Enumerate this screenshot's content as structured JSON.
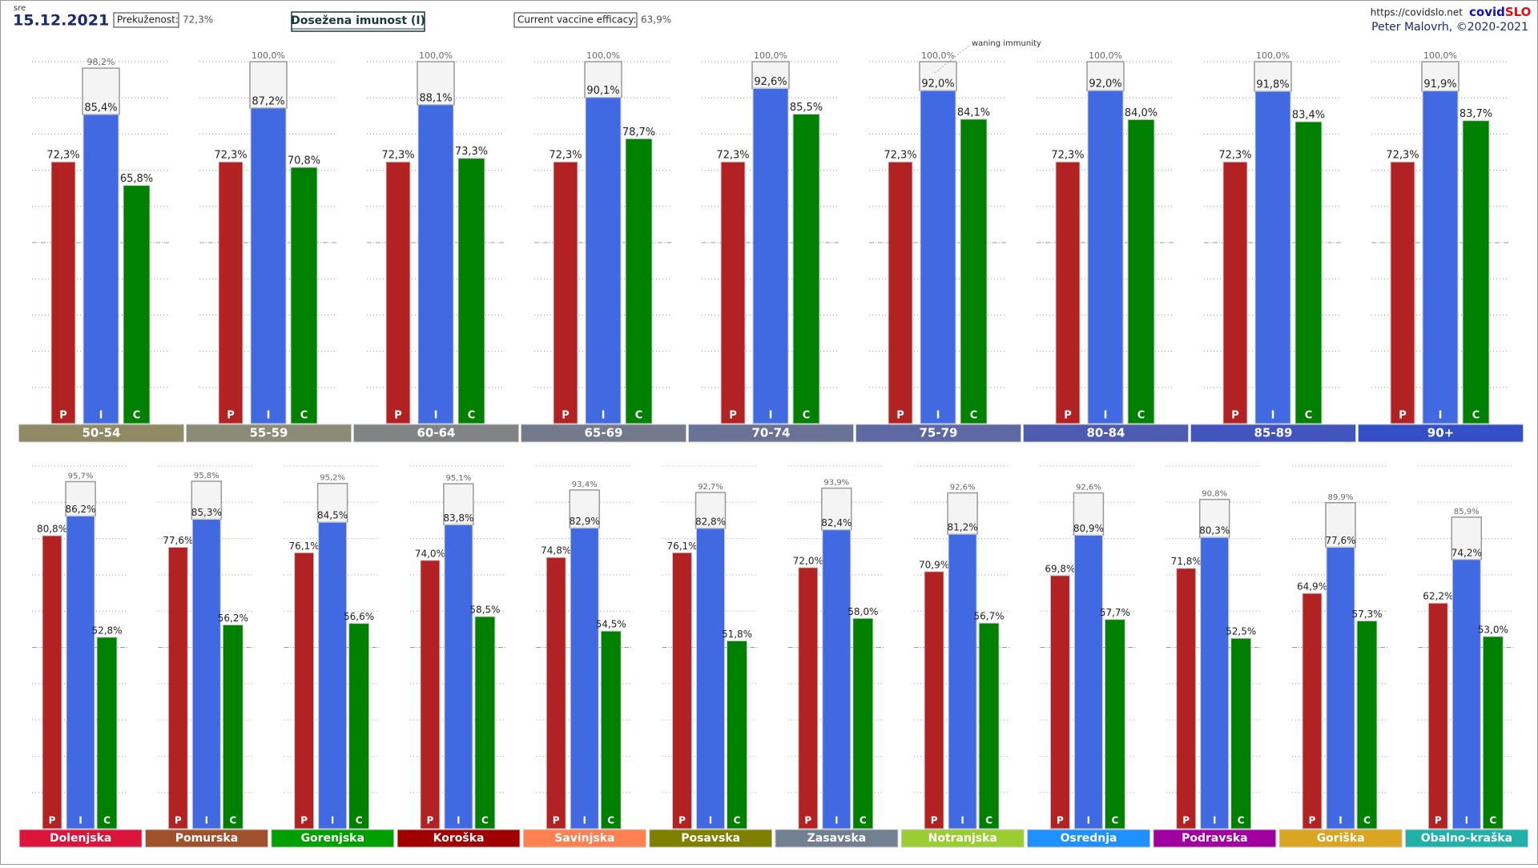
{
  "header": {
    "weekday": "sre",
    "date": "15.12.2021",
    "infected_label": "Prekuženost:",
    "infected_value": "72,3%",
    "title": "Dosežena imunost (I)",
    "efficacy_label": "Current vaccine efficacy:",
    "efficacy_value": "63,9%",
    "url": "https://covidslo.net",
    "brand_a": "covid",
    "brand_b": "SLO",
    "author": "Peter Malovrh, ©2020-2021"
  },
  "chart_data": [
    {
      "type": "bar",
      "annotation": "waning immunity",
      "categories": [
        "50-54",
        "55-59",
        "60-64",
        "65-69",
        "70-74",
        "75-79",
        "80-84",
        "85-89",
        "90+"
      ],
      "category_colors": [
        "#8f8a63",
        "#8c8b78",
        "#808485",
        "#737a8c",
        "#6a7396",
        "#5e68a3",
        "#4d5cb0",
        "#4255bf",
        "#3550c7"
      ],
      "series": [
        {
          "name": "P",
          "color": "#b22222",
          "values": [
            72.3,
            72.3,
            72.3,
            72.3,
            72.3,
            72.3,
            72.3,
            72.3,
            72.3
          ],
          "value_labels": [
            "72,3%",
            "72,3%",
            "72,3%",
            "72,3%",
            "72,3%",
            "72,3%",
            "72,3%",
            "72,3%",
            "72,3%"
          ]
        },
        {
          "name": "I",
          "color": "#4169e1",
          "values": [
            85.4,
            87.2,
            88.1,
            90.1,
            92.6,
            92.0,
            92.0,
            91.8,
            91.9
          ],
          "value_labels": [
            "85,4%",
            "87,2%",
            "88,1%",
            "90,1%",
            "92,6%",
            "92,0%",
            "92,0%",
            "91,8%",
            "91,9%"
          ]
        },
        {
          "name": "C",
          "color": "#008000",
          "values": [
            65.8,
            70.8,
            73.3,
            78.7,
            85.5,
            84.1,
            84.0,
            83.4,
            83.7
          ],
          "value_labels": [
            "65,8%",
            "70,8%",
            "73,3%",
            "78,7%",
            "85,5%",
            "84,1%",
            "84,0%",
            "83,4%",
            "83,7%"
          ]
        }
      ],
      "reference": {
        "color": "#f4f4f4",
        "values": [
          98.2,
          100.0,
          100.0,
          100.0,
          100.0,
          100.0,
          100.0,
          100.0,
          100.0
        ],
        "value_labels": [
          "98,2%",
          "100,0%",
          "100,0%",
          "100,0%",
          "100,0%",
          "100,0%",
          "100,0%",
          "100,0%",
          "100,0%"
        ]
      },
      "ylim": [
        0,
        100
      ],
      "yticks": [
        10,
        20,
        30,
        40,
        50,
        60,
        70,
        80,
        90,
        100
      ],
      "grid": true
    },
    {
      "type": "bar",
      "categories": [
        "Dolenjska",
        "Pomurska",
        "Gorenjska",
        "Koroška",
        "Savinjska",
        "Posavska",
        "Zasavska",
        "Notranjska",
        "Osrednja",
        "Podravska",
        "Goriška",
        "Obalno-kraška"
      ],
      "category_colors": [
        "#dc143c",
        "#a0522d",
        "#00a000",
        "#a00000",
        "#ff7f50",
        "#808000",
        "#708090",
        "#9acd32",
        "#1e90ff",
        "#a000a0",
        "#daa520",
        "#20b2aa"
      ],
      "series": [
        {
          "name": "P",
          "color": "#b22222",
          "values": [
            80.8,
            77.6,
            76.1,
            74.0,
            74.8,
            76.1,
            72.0,
            70.9,
            69.8,
            71.8,
            64.9,
            62.2
          ],
          "value_labels": [
            "80,8%",
            "77,6%",
            "76,1%",
            "74,0%",
            "74,8%",
            "76,1%",
            "72,0%",
            "70,9%",
            "69,8%",
            "71,8%",
            "64,9%",
            "62,2%"
          ]
        },
        {
          "name": "I",
          "color": "#4169e1",
          "values": [
            86.2,
            85.3,
            84.5,
            83.8,
            82.9,
            82.8,
            82.4,
            81.2,
            80.9,
            80.3,
            77.6,
            74.2
          ],
          "value_labels": [
            "86,2%",
            "85,3%",
            "84,5%",
            "83,8%",
            "82,9%",
            "82,8%",
            "82,4%",
            "81,2%",
            "80,9%",
            "80,3%",
            "77,6%",
            "74,2%"
          ]
        },
        {
          "name": "C",
          "color": "#008000",
          "values": [
            52.8,
            56.2,
            56.6,
            58.5,
            54.5,
            51.8,
            58.0,
            56.7,
            57.7,
            52.5,
            57.3,
            53.0
          ],
          "value_labels": [
            "52,8%",
            "56,2%",
            "56,6%",
            "58,5%",
            "54,5%",
            "51,8%",
            "58,0%",
            "56,7%",
            "57,7%",
            "52,5%",
            "57,3%",
            "53,0%"
          ]
        }
      ],
      "reference": {
        "color": "#f4f4f4",
        "values": [
          95.7,
          95.8,
          95.2,
          95.1,
          93.4,
          92.7,
          93.9,
          92.6,
          92.6,
          90.8,
          89.9,
          85.9
        ],
        "value_labels": [
          "95,7%",
          "95,8%",
          "95,2%",
          "95,1%",
          "93,4%",
          "92,7%",
          "93,9%",
          "92,6%",
          "92,6%",
          "90,8%",
          "89,9%",
          "85,9%"
        ]
      },
      "ylim": [
        0,
        100
      ],
      "yticks": [
        10,
        20,
        30,
        40,
        50,
        60,
        70,
        80,
        90,
        100
      ],
      "grid": true
    }
  ]
}
